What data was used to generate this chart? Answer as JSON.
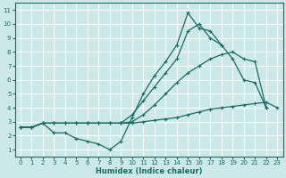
{
  "xlabel": "Humidex (Indice chaleur)",
  "bg_color": "#cce8e8",
  "grid_color": "#b0d8d8",
  "line_color": "#1a6b60",
  "xlim": [
    -0.5,
    23.5
  ],
  "ylim": [
    0.5,
    11.5
  ],
  "xticks": [
    0,
    1,
    2,
    3,
    4,
    5,
    6,
    7,
    8,
    9,
    10,
    11,
    12,
    13,
    14,
    15,
    16,
    17,
    18,
    19,
    20,
    21,
    22,
    23
  ],
  "yticks": [
    1,
    2,
    3,
    4,
    5,
    6,
    7,
    8,
    9,
    10,
    11
  ],
  "lines": [
    {
      "x": [
        0,
        1,
        2,
        3,
        4,
        5,
        6,
        7,
        8,
        9,
        10,
        11,
        12,
        13,
        14,
        15,
        16,
        17,
        18,
        19,
        20,
        21
      ],
      "y": [
        2.6,
        2.6,
        2.9,
        2.2,
        2.2,
        1.8,
        1.6,
        1.4,
        1.0,
        1.6,
        3.3,
        5.0,
        6.3,
        7.3,
        8.5,
        10.8,
        9.7,
        9.5,
        8.5,
        null,
        null,
        null
      ]
    },
    {
      "x": [
        0,
        1,
        2,
        3,
        4,
        5,
        6,
        7,
        8,
        9,
        10,
        11,
        12,
        13,
        14,
        15,
        16,
        17,
        18,
        19,
        20,
        21,
        22
      ],
      "y": [
        2.6,
        2.6,
        2.9,
        2.9,
        2.9,
        2.9,
        2.9,
        2.9,
        2.9,
        2.9,
        3.5,
        4.5,
        5.5,
        6.5,
        7.5,
        9.5,
        10.0,
        9.0,
        8.5,
        7.5,
        6.0,
        5.8,
        4.0
      ]
    },
    {
      "x": [
        0,
        1,
        2,
        3,
        4,
        5,
        6,
        7,
        8,
        9,
        10,
        11,
        12,
        13,
        14,
        15,
        16,
        17,
        18,
        19,
        20,
        21,
        22
      ],
      "y": [
        2.6,
        2.6,
        2.9,
        2.9,
        2.9,
        2.9,
        2.9,
        2.9,
        2.9,
        2.9,
        3.0,
        3.5,
        4.2,
        5.0,
        5.8,
        6.5,
        7.0,
        7.5,
        7.8,
        8.0,
        7.5,
        7.3,
        4.0
      ]
    },
    {
      "x": [
        0,
        1,
        2,
        3,
        4,
        5,
        6,
        7,
        8,
        9,
        10,
        11,
        12,
        13,
        14,
        15,
        16,
        17,
        18,
        19,
        20,
        21,
        22,
        23
      ],
      "y": [
        2.6,
        2.6,
        2.9,
        2.9,
        2.9,
        2.9,
        2.9,
        2.9,
        2.9,
        2.9,
        2.9,
        3.0,
        3.1,
        3.2,
        3.3,
        3.5,
        3.7,
        3.9,
        4.0,
        4.1,
        4.2,
        4.3,
        4.4,
        4.0
      ]
    }
  ]
}
